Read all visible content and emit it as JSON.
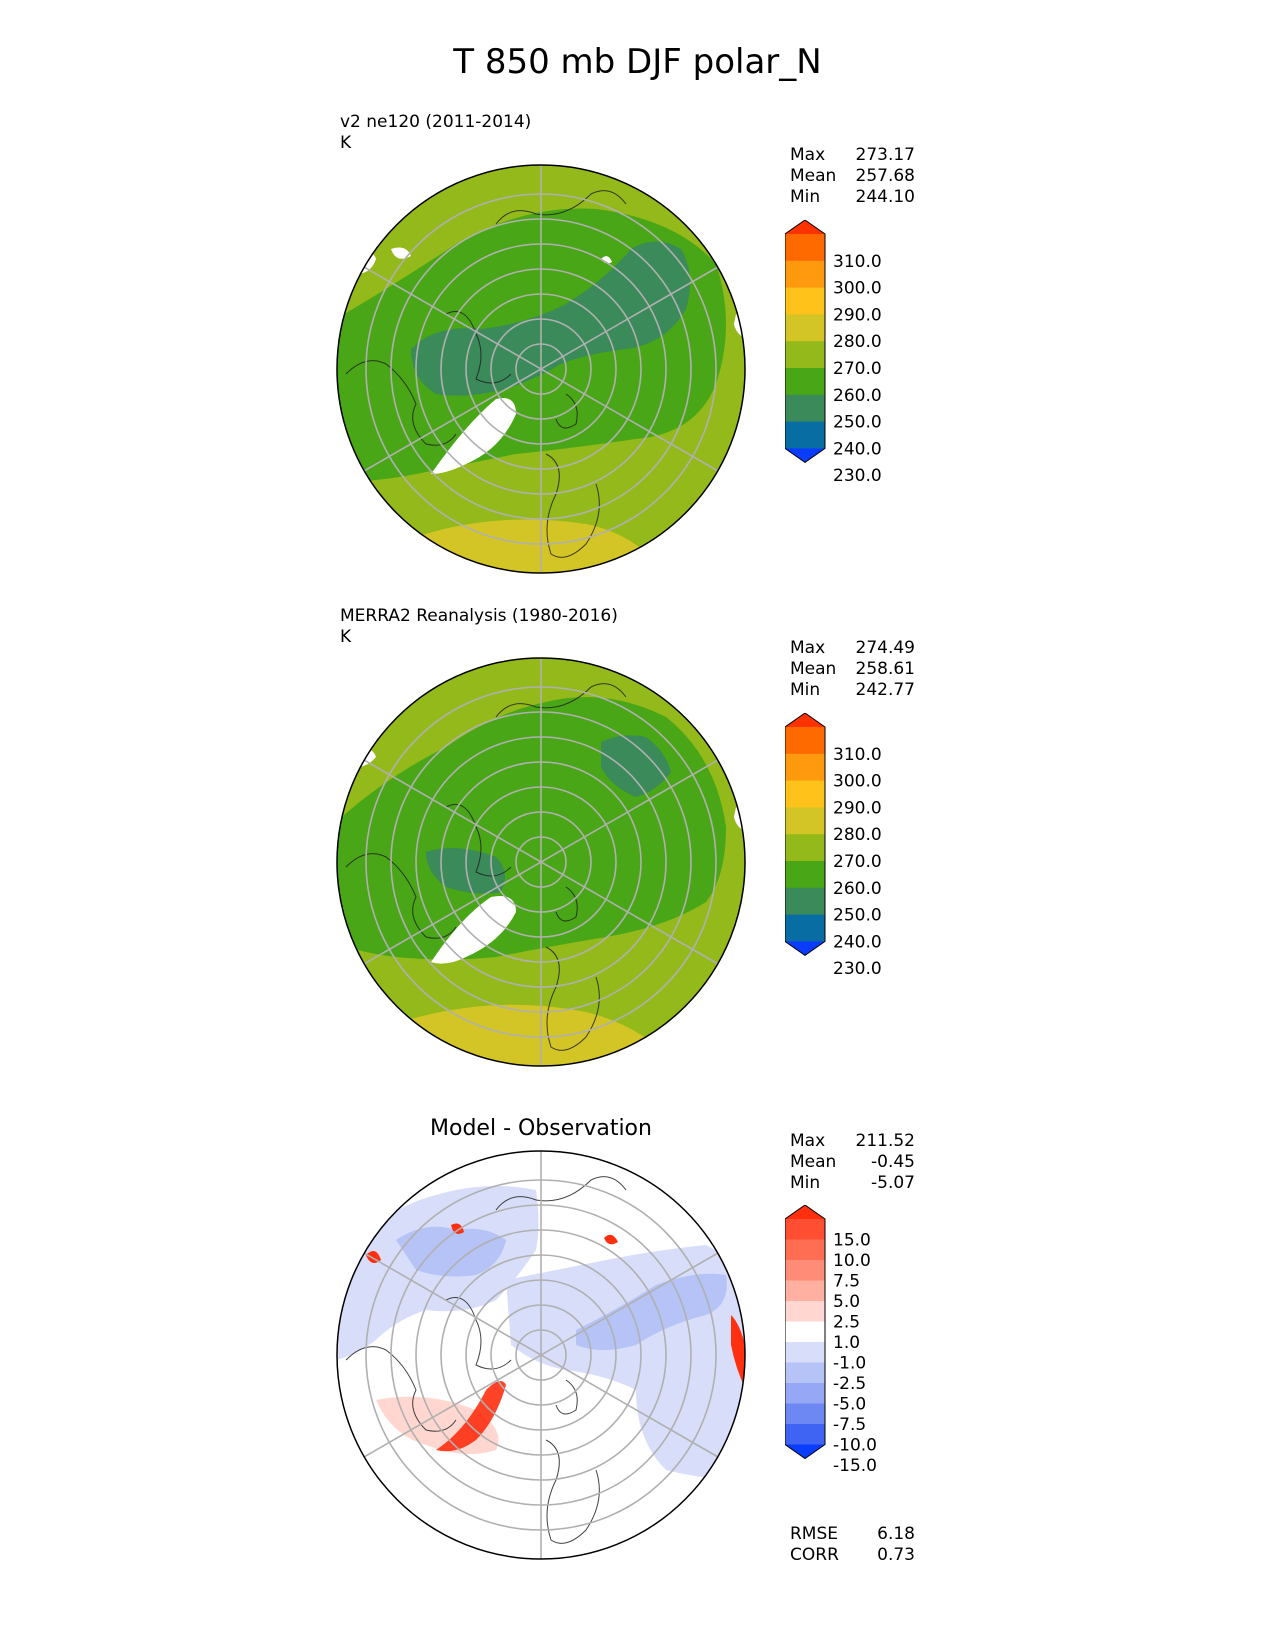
{
  "title": "T 850 mb DJF polar_N",
  "panels": [
    {
      "title_line1": "v2 ne120 (2011-2014)",
      "title_line2": "K",
      "stats": [
        {
          "label": "Max",
          "value": "273.17"
        },
        {
          "label": "Mean",
          "value": "257.68"
        },
        {
          "label": "Min",
          "value": "244.10"
        }
      ],
      "colorbar": {
        "labels": [
          "310.0",
          "300.0",
          "290.0",
          "280.0",
          "270.0",
          "260.0",
          "250.0",
          "240.0",
          "230.0"
        ],
        "colors": [
          "#fe3300",
          "#ff6a00",
          "#ff9a0e",
          "#ffc21b",
          "#d3c525",
          "#94b91b",
          "#49a616",
          "#3a8a5a",
          "#086da3",
          "#0a3cfd"
        ]
      }
    },
    {
      "title_line1": "MERRA2 Reanalysis (1980-2016)",
      "title_line2": "K",
      "stats": [
        {
          "label": "Max",
          "value": "274.49"
        },
        {
          "label": "Mean",
          "value": "258.61"
        },
        {
          "label": "Min",
          "value": "242.77"
        }
      ],
      "colorbar": {
        "labels": [
          "310.0",
          "300.0",
          "290.0",
          "280.0",
          "270.0",
          "260.0",
          "250.0",
          "240.0",
          "230.0"
        ],
        "colors": [
          "#fe3300",
          "#ff6a00",
          "#ff9a0e",
          "#ffc21b",
          "#d3c525",
          "#94b91b",
          "#49a616",
          "#3a8a5a",
          "#086da3",
          "#0a3cfd"
        ]
      }
    },
    {
      "title": "Model - Observation",
      "stats": [
        {
          "label": "Max",
          "value": "211.52"
        },
        {
          "label": "Mean",
          "value": "-0.45"
        },
        {
          "label": "Min",
          "value": "-5.07"
        }
      ],
      "colorbar": {
        "labels": [
          "15.0",
          "10.0",
          "7.5",
          "5.0",
          "2.5",
          "1.0",
          "-1.0",
          "-2.5",
          "-5.0",
          "-7.5",
          "-10.0",
          "-15.0"
        ],
        "colors": [
          "#ff2f0f",
          "#ff4e31",
          "#ff6e52",
          "#ff8c76",
          "#ffb0a0",
          "#ffd7d0",
          "#ffffff",
          "#d8def9",
          "#b6c3f6",
          "#95a7f5",
          "#6d87f3",
          "#3f63f2",
          "#0a3cfd"
        ]
      },
      "metrics": [
        {
          "label": "RMSE",
          "value": "6.18"
        },
        {
          "label": "CORR",
          "value": "0.73"
        }
      ]
    }
  ]
}
